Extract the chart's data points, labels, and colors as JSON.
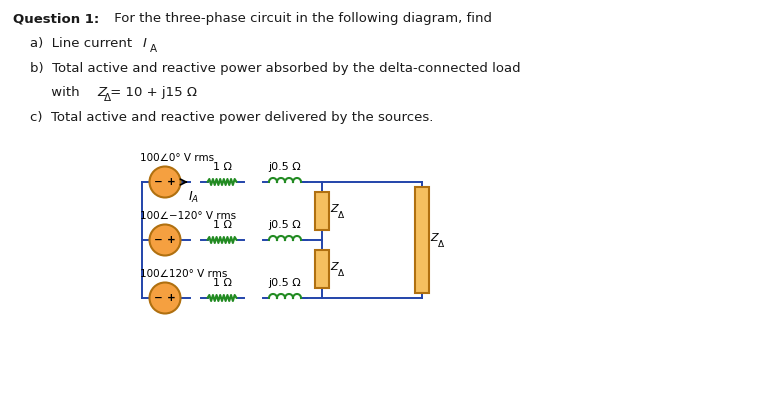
{
  "bg_color": "#ffffff",
  "text_color": "#1a1a1a",
  "blue_text": "#1a3a8f",
  "circuit_line_color": "#2244aa",
  "source_fill": "#f5a040",
  "source_edge": "#b07010",
  "resistor_color": "#228B22",
  "inductor_color": "#228B22",
  "Zdelta_fill": "#f5c060",
  "Zdelta_edge": "#b07010",
  "title_bold": "Question 1:",
  "title_rest": " For the three-phase circuit in the following diagram, find",
  "item_a": "a)  Line current ",
  "item_b1": "b)  Total active and reactive power absorbed by the delta-connected load",
  "item_b2": "     with Z",
  "item_b3": " = 10 + j15 Ω",
  "item_c": "c)  Total active and reactive power delivered by the sources.",
  "src_top": "100∠0° V rms",
  "src_mid": "100∠−120° V rms",
  "src_bot": "100∠120° V rms",
  "res_lbl": "1 Ω",
  "ind_lbl": "j0.5 Ω",
  "fig_w": 7.78,
  "fig_h": 4.12,
  "dpi": 100
}
